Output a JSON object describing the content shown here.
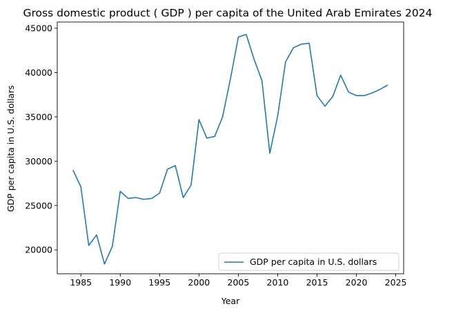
{
  "chart_data": {
    "type": "line",
    "title": "Gross domestic product ( GDP ) per capita of the United Arab Emirates 2024",
    "xlabel": "Year",
    "ylabel": "GDP per capita in U.S. dollars",
    "xlim": [
      1982,
      2026
    ],
    "ylim": [
      17300,
      45700
    ],
    "xticks": [
      1985,
      1990,
      1995,
      2000,
      2005,
      2010,
      2015,
      2020,
      2025
    ],
    "yticks": [
      20000,
      25000,
      30000,
      35000,
      40000,
      45000
    ],
    "grid": false,
    "legend_position": "lower-right",
    "series": [
      {
        "name": "GDP per capita in U.S. dollars",
        "color": "#1f77b4",
        "x": [
          1984,
          1985,
          1986,
          1987,
          1988,
          1989,
          1990,
          1991,
          1992,
          1993,
          1994,
          1995,
          1996,
          1997,
          1998,
          1999,
          2000,
          2001,
          2002,
          2003,
          2004,
          2005,
          2006,
          2007,
          2008,
          2009,
          2010,
          2011,
          2012,
          2013,
          2014,
          2015,
          2016,
          2017,
          2018,
          2019,
          2020,
          2021,
          2022,
          2023,
          2024
        ],
        "values": [
          29000,
          27100,
          20500,
          21700,
          18400,
          20400,
          26600,
          25800,
          25900,
          25700,
          25800,
          26400,
          29100,
          29500,
          25900,
          27300,
          34700,
          32600,
          32800,
          35000,
          39300,
          44000,
          44300,
          41500,
          39100,
          30900,
          35100,
          41200,
          42800,
          43200,
          43300,
          37400,
          36200,
          37300,
          39700,
          37800,
          37400,
          37400,
          37700,
          38100,
          38600
        ]
      }
    ]
  }
}
